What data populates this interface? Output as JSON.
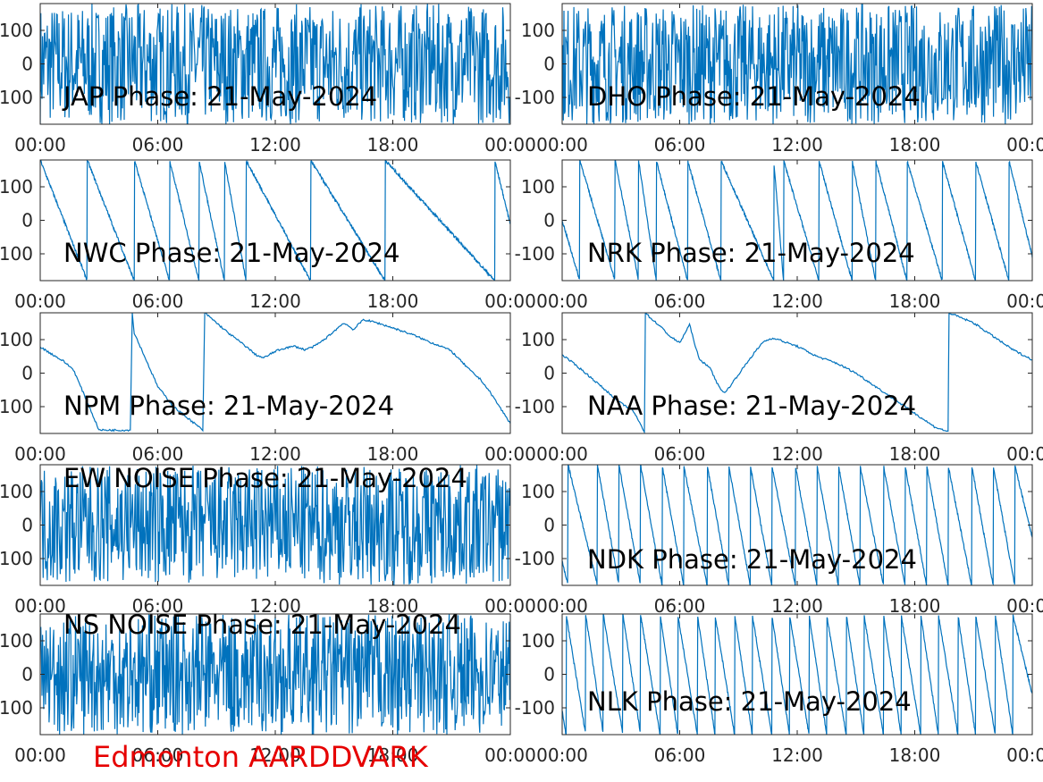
{
  "figure_label": "Edmonton AARDDVARK",
  "colors": {
    "trace": "#0072BD",
    "axis": "#262626",
    "label": "#E60000",
    "background": "#FFFFFF"
  },
  "chart_data": [
    {
      "type": "line",
      "title": "JAP Phase: 21-May-2024",
      "xlim": [
        "00:00",
        "24:00"
      ],
      "ylim": [
        -180,
        180
      ],
      "xticks": [
        "00:00",
        "06:00",
        "12:00",
        "18:00",
        "00:00"
      ],
      "yticks": [
        100,
        0,
        -100
      ],
      "pattern": "dense-noise"
    },
    {
      "type": "line",
      "title": "DHO Phase: 21-May-2024",
      "xlim": [
        "00:00",
        "24:00"
      ],
      "ylim": [
        -180,
        180
      ],
      "xticks": [
        "00:00",
        "06:00",
        "12:00",
        "18:00",
        "00:00"
      ],
      "yticks": [
        100,
        0,
        -100
      ],
      "pattern": "dense-noise"
    },
    {
      "type": "line",
      "title": "NWC Phase: 21-May-2024",
      "xlim": [
        "00:00",
        "24:00"
      ],
      "ylim": [
        -180,
        180
      ],
      "xticks": [
        "00:00",
        "06:00",
        "12:00",
        "18:00",
        "00:00"
      ],
      "yticks": [
        100,
        0,
        -100
      ],
      "pattern": "sawtooth",
      "wraps_hours": [
        2.4,
        4.8,
        6.6,
        8.1,
        9.4,
        10.5,
        13.8,
        17.6,
        23.2
      ]
    },
    {
      "type": "line",
      "title": "NRK Phase: 21-May-2024",
      "xlim": [
        "00:00",
        "24:00"
      ],
      "ylim": [
        -180,
        180
      ],
      "xticks": [
        "00:00",
        "06:00",
        "12:00",
        "18:00",
        "00:00"
      ],
      "yticks": [
        100,
        0,
        -100
      ],
      "pattern": "sawtooth",
      "wraps_hours": [
        0.9,
        2.7,
        3.9,
        4.8,
        6.4,
        8.1,
        10.8,
        11.3,
        13.1,
        14.8,
        16.0,
        17.6,
        19.4,
        21.1,
        22.8
      ]
    },
    {
      "type": "line",
      "title": "NPM Phase: 21-May-2024",
      "xlim": [
        "00:00",
        "24:00"
      ],
      "ylim": [
        -180,
        180
      ],
      "xticks": [
        "00:00",
        "06:00",
        "12:00",
        "18:00",
        "00:00"
      ],
      "yticks": [
        100,
        0,
        -100
      ],
      "pattern": "path",
      "points": [
        [
          0,
          78
        ],
        [
          1.2,
          35
        ],
        [
          1.7,
          10
        ],
        [
          2.5,
          -100
        ],
        [
          3.0,
          -170
        ],
        [
          4.6,
          -170
        ],
        [
          4.7,
          180
        ],
        [
          4.8,
          120
        ],
        [
          6.0,
          -40
        ],
        [
          6.8,
          -100
        ],
        [
          8.3,
          -170
        ],
        [
          8.4,
          180
        ],
        [
          9.6,
          120
        ],
        [
          10.5,
          80
        ],
        [
          11.0,
          55
        ],
        [
          11.4,
          45
        ],
        [
          12.0,
          65
        ],
        [
          12.5,
          75
        ],
        [
          13.0,
          80
        ],
        [
          13.5,
          70
        ],
        [
          14.0,
          80
        ],
        [
          14.5,
          100
        ],
        [
          15.0,
          125
        ],
        [
          15.5,
          150
        ],
        [
          16.0,
          130
        ],
        [
          16.5,
          160
        ],
        [
          17.2,
          150
        ],
        [
          18.0,
          135
        ],
        [
          19.0,
          115
        ],
        [
          20.0,
          90
        ],
        [
          20.5,
          80
        ],
        [
          21.0,
          65
        ],
        [
          22.0,
          5
        ],
        [
          22.5,
          -20
        ],
        [
          23.0,
          -60
        ],
        [
          24.0,
          -150
        ]
      ]
    },
    {
      "type": "line",
      "title": "NAA Phase: 21-May-2024",
      "xlim": [
        "00:00",
        "24:00"
      ],
      "ylim": [
        -180,
        180
      ],
      "xticks": [
        "00:00",
        "06:00",
        "12:00",
        "18:00",
        "00:00"
      ],
      "yticks": [
        100,
        0,
        -100
      ],
      "pattern": "path",
      "points": [
        [
          0,
          55
        ],
        [
          1.0,
          10
        ],
        [
          2.0,
          -40
        ],
        [
          3.0,
          -90
        ],
        [
          3.6,
          -110
        ],
        [
          4.2,
          -175
        ],
        [
          4.25,
          180
        ],
        [
          4.5,
          165
        ],
        [
          5.0,
          140
        ],
        [
          5.5,
          110
        ],
        [
          6.0,
          90
        ],
        [
          6.5,
          145
        ],
        [
          7.0,
          40
        ],
        [
          7.5,
          20
        ],
        [
          8.0,
          -40
        ],
        [
          8.3,
          -60
        ],
        [
          8.8,
          -20
        ],
        [
          9.3,
          20
        ],
        [
          9.8,
          60
        ],
        [
          10.3,
          95
        ],
        [
          10.8,
          105
        ],
        [
          11.5,
          90
        ],
        [
          12.0,
          80
        ],
        [
          13.0,
          50
        ],
        [
          14.0,
          30
        ],
        [
          15.0,
          0
        ],
        [
          16.0,
          -40
        ],
        [
          17.0,
          -80
        ],
        [
          18.0,
          -120
        ],
        [
          19.0,
          -160
        ],
        [
          19.7,
          -175
        ],
        [
          19.75,
          180
        ],
        [
          21.0,
          150
        ],
        [
          22.0,
          110
        ],
        [
          23.0,
          70
        ],
        [
          24.0,
          40
        ]
      ]
    },
    {
      "type": "line",
      "title": "EW NOISE Phase: 21-May-2024",
      "xlim": [
        "00:00",
        "24:00"
      ],
      "ylim": [
        -180,
        180
      ],
      "xticks": [
        "00:00",
        "06:00",
        "12:00",
        "18:00",
        "00:00"
      ],
      "yticks": [
        100,
        0,
        -100
      ],
      "pattern": "dense-noise"
    },
    {
      "type": "line",
      "title": "NDK Phase: 21-May-2024",
      "xlim": [
        "00:00",
        "24:00"
      ],
      "ylim": [
        -180,
        180
      ],
      "xticks": [
        "00:00",
        "06:00",
        "12:00",
        "18:00",
        "00:00"
      ],
      "yticks": [
        100,
        0,
        -100
      ],
      "pattern": "sawtooth",
      "wraps_hours": [
        0.3,
        1.8,
        2.9,
        4.0,
        5.1,
        6.2,
        7.4,
        8.5,
        9.6,
        10.7,
        11.9,
        13.0,
        14.1,
        15.2,
        16.4,
        17.5,
        18.6,
        19.7,
        20.9,
        22.0,
        23.1
      ]
    },
    {
      "type": "line",
      "title": "NS NOISE Phase: 21-May-2024",
      "xlim": [
        "00:00",
        "24:00"
      ],
      "ylim": [
        -180,
        180
      ],
      "xticks": [
        "00:00",
        "06:00",
        "12:00",
        "18:00",
        "00:00"
      ],
      "yticks": [
        100,
        0,
        -100
      ],
      "pattern": "dense-noise"
    },
    {
      "type": "line",
      "title": "NLK Phase: 21-May-2024",
      "xlim": [
        "00:00",
        "24:00"
      ],
      "ylim": [
        -180,
        180
      ],
      "xticks": [
        "00:00",
        "06:00",
        "12:00",
        "18:00",
        "00:00"
      ],
      "yticks": [
        100,
        0,
        -100
      ],
      "pattern": "sawtooth",
      "wraps_hours": [
        0.2,
        1.2,
        2.1,
        3.1,
        4.0,
        5.0,
        5.9,
        6.9,
        7.8,
        8.8,
        9.7,
        10.7,
        11.6,
        12.6,
        13.5,
        14.5,
        15.4,
        16.4,
        17.3,
        18.3,
        19.2,
        20.2,
        21.1,
        22.1,
        23.0
      ]
    }
  ]
}
